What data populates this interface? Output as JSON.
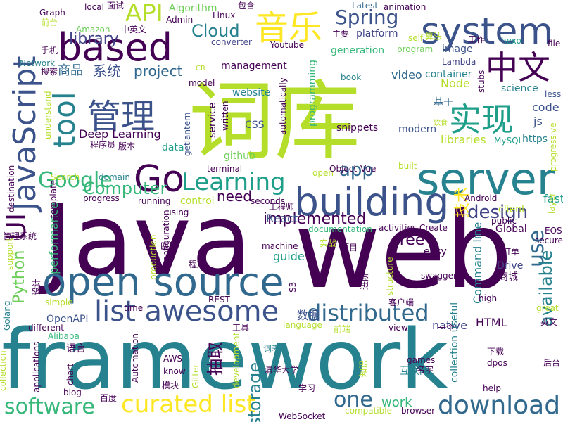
{
  "palette": {
    "dark_purple": "#440154",
    "indigo": "#3b528b",
    "slate_blue": "#414487",
    "teal_blue": "#31688e",
    "teal": "#26828e",
    "sea_green": "#1f9e89",
    "green": "#35b779",
    "light_green": "#6ece58",
    "lime": "#b5de2b",
    "yellow": "#fde725"
  },
  "words": [
    {
      "text": "Java",
      "color": "#440154"
    },
    {
      "text": "web",
      "color": "#440154"
    },
    {
      "text": "framework",
      "color": "#26828e"
    },
    {
      "text": "词库",
      "color": "#b5de2b"
    },
    {
      "text": "open source",
      "color": "#31688e"
    },
    {
      "text": "building",
      "color": "#3b528b"
    },
    {
      "text": "server",
      "color": "#26828e"
    },
    {
      "text": "JavaScript",
      "color": "#3b528b"
    },
    {
      "text": "based",
      "color": "#440154"
    },
    {
      "text": "system",
      "color": "#3b528b"
    },
    {
      "text": "Go",
      "color": "#440154"
    },
    {
      "text": "list awesome",
      "color": "#3b528b"
    },
    {
      "text": "curated list",
      "color": "#fde725"
    },
    {
      "text": "download",
      "color": "#31688e"
    },
    {
      "text": "管理",
      "color": "#3b528b"
    },
    {
      "text": "实现",
      "color": "#1f9e89"
    },
    {
      "text": "中文",
      "color": "#440154"
    },
    {
      "text": "音乐",
      "color": "#fde725"
    },
    {
      "text": "Learning",
      "color": "#1f9e89"
    },
    {
      "text": "distributed",
      "color": "#31688e"
    },
    {
      "text": "software",
      "color": "#35b779"
    },
    {
      "text": "tool",
      "color": "#26828e"
    },
    {
      "text": "API",
      "color": "#b5de2b"
    },
    {
      "text": "Spring",
      "color": "#3b528b"
    },
    {
      "text": "Cloud",
      "color": "#26828e"
    },
    {
      "text": "Google",
      "color": "#35b779"
    },
    {
      "text": "Computer",
      "color": "#35b779"
    },
    {
      "text": "library",
      "color": "#414487"
    },
    {
      "text": "project",
      "color": "#31688e"
    },
    {
      "text": "app",
      "color": "#31688e"
    },
    {
      "text": "design",
      "color": "#414487"
    },
    {
      "text": "use",
      "color": "#31688e"
    },
    {
      "text": "available",
      "color": "#26828e"
    },
    {
      "text": "implemented",
      "color": "#440154"
    },
    {
      "text": "one",
      "color": "#31688e"
    },
    {
      "text": "storage",
      "color": "#26828e"
    },
    {
      "text": "UI",
      "color": "#440154"
    },
    {
      "text": "Python",
      "color": "#6ece58"
    },
    {
      "text": "free",
      "color": "#440154"
    },
    {
      "text": "need",
      "color": "#440154"
    },
    {
      "text": "抽取",
      "color": "#440154"
    },
    {
      "text": "work",
      "color": "#35b779"
    },
    {
      "text": "系统",
      "color": "#3b528b"
    },
    {
      "text": "商品",
      "color": "#31688e"
    },
    {
      "text": "Algorithm",
      "color": "#6ece58"
    },
    {
      "text": "Deep Learning",
      "color": "#440154"
    },
    {
      "text": "Command line",
      "color": "#26828e"
    },
    {
      "text": "performance",
      "color": "#35b779"
    },
    {
      "text": "libraries",
      "color": "#b5de2b"
    },
    {
      "text": "github",
      "color": "#6ece58"
    },
    {
      "text": "data",
      "color": "#1f9e89"
    },
    {
      "text": "CSS",
      "color": "#3b528b"
    },
    {
      "text": "React",
      "color": "#3b528b"
    },
    {
      "text": "guide",
      "color": "#1f9e89"
    },
    {
      "text": "native",
      "color": "#414487"
    },
    {
      "text": "collection useful",
      "color": "#26828e"
    },
    {
      "text": "Drive",
      "color": "#414487"
    },
    {
      "text": "container",
      "color": "#26828e"
    },
    {
      "text": "Node",
      "color": "#b5de2b"
    },
    {
      "text": "website",
      "color": "#26828e"
    },
    {
      "text": "video",
      "color": "#31688e"
    },
    {
      "text": "code",
      "color": "#3b528b"
    },
    {
      "text": "js",
      "color": "#3b528b"
    },
    {
      "text": "https",
      "color": "#26828e"
    },
    {
      "text": "fast",
      "color": "#1f9e89"
    },
    {
      "text": "基于",
      "color": "#31688e"
    },
    {
      "text": "技术",
      "color": "#fde725"
    },
    {
      "text": "数据",
      "color": "#3b528b"
    },
    {
      "text": "工程师",
      "color": "#440154"
    },
    {
      "text": "互联网",
      "color": "#26828e"
    },
    {
      "text": "HTML",
      "color": "#440154"
    },
    {
      "text": "OpenAPI",
      "color": "#3b528b"
    },
    {
      "text": "程序员",
      "color": "#440154"
    },
    {
      "text": "generation",
      "color": "#35b779"
    },
    {
      "text": "platform",
      "color": "#414487"
    },
    {
      "text": "management",
      "color": "#440154"
    },
    {
      "text": "programming",
      "color": "#35b779"
    },
    {
      "text": "snippets",
      "color": "#440154"
    },
    {
      "text": "modern",
      "color": "#3b528b"
    },
    {
      "text": "book",
      "color": "#26828e"
    },
    {
      "text": "science",
      "color": "#26828e"
    },
    {
      "text": "Youtube",
      "color": "#440154"
    },
    {
      "text": "converter",
      "color": "#414487"
    },
    {
      "text": "program",
      "color": "#6ece58"
    },
    {
      "text": "image",
      "color": "#3b528b"
    },
    {
      "text": "Lambda",
      "color": "#414487"
    },
    {
      "text": "Latest",
      "color": "#31688e"
    },
    {
      "text": "animation",
      "color": "#440154"
    },
    {
      "text": "Graph",
      "color": "#440154"
    },
    {
      "text": "local",
      "color": "#440154"
    },
    {
      "text": "面试",
      "color": "#440154"
    },
    {
      "text": "Linux",
      "color": "#440154"
    },
    {
      "text": "包含",
      "color": "#440154"
    },
    {
      "text": "Admin",
      "color": "#440154"
    },
    {
      "text": "中英文",
      "color": "#440154"
    },
    {
      "text": "Amazon",
      "color": "#6ece58"
    },
    {
      "text": "前台",
      "color": "#b5de2b"
    },
    {
      "text": "手机",
      "color": "#440154"
    },
    {
      "text": "Network",
      "color": "#26828e"
    },
    {
      "text": "搜索",
      "color": "#440154"
    },
    {
      "text": "model",
      "color": "#440154"
    },
    {
      "text": "主要",
      "color": "#440154"
    },
    {
      "text": "self",
      "color": "#b5de2b"
    },
    {
      "text": "算法",
      "color": "#b5de2b"
    },
    {
      "text": "工作",
      "color": "#440154"
    },
    {
      "text": "hexo",
      "color": "#1f9e89"
    },
    {
      "text": "file",
      "color": "#440154"
    },
    {
      "text": "less",
      "color": "#3b528b"
    },
    {
      "text": "stubs",
      "color": "#440154"
    },
    {
      "text": "written",
      "color": "#440154"
    },
    {
      "text": "service",
      "color": "#440154"
    },
    {
      "text": "automatically",
      "color": "#440154"
    },
    {
      "text": "getlantern",
      "color": "#3b528b"
    },
    {
      "text": "understand",
      "color": "#b5de2b"
    },
    {
      "text": "版本",
      "color": "#440154"
    },
    {
      "text": "MySQL",
      "color": "#1f9e89"
    },
    {
      "text": "progressive",
      "color": "#b5de2b"
    },
    {
      "text": "Search",
      "color": "#b5de2b"
    },
    {
      "text": "domain",
      "color": "#26828e"
    },
    {
      "text": "terminal",
      "color": "#440154"
    },
    {
      "text": "seconds",
      "color": "#440154"
    },
    {
      "text": "open",
      "color": "#b5de2b"
    },
    {
      "text": "Object",
      "color": "#440154"
    },
    {
      "text": "Vue",
      "color": "#440154"
    },
    {
      "text": "built",
      "color": "#b5de2b"
    },
    {
      "text": "destination",
      "color": "#440154"
    },
    {
      "text": "template",
      "color": "#440154"
    },
    {
      "text": "progress",
      "color": "#440154"
    },
    {
      "text": "running",
      "color": "#440154"
    },
    {
      "text": "control",
      "color": "#b5de2b"
    },
    {
      "text": "Android",
      "color": "#440154"
    },
    {
      "text": "layer",
      "color": "#b5de2b"
    },
    {
      "text": "client",
      "color": "#b5de2b"
    },
    {
      "text": "public",
      "color": "#440154"
    },
    {
      "text": "Global",
      "color": "#440154"
    },
    {
      "text": "EOS",
      "color": "#440154"
    },
    {
      "text": "secure",
      "color": "#440154"
    },
    {
      "text": "using",
      "color": "#440154"
    },
    {
      "text": "configuration",
      "color": "#440154"
    },
    {
      "text": "production",
      "color": "#b5de2b"
    },
    {
      "text": "documentation",
      "color": "#35b779"
    },
    {
      "text": "activities",
      "color": "#440154"
    },
    {
      "text": "Create",
      "color": "#440154"
    },
    {
      "text": "管理系统",
      "color": "#440154"
    },
    {
      "text": "support",
      "color": "#b5de2b"
    },
    {
      "text": "匹配",
      "color": "#440154"
    },
    {
      "text": "程序",
      "color": "#440154"
    },
    {
      "text": "实战",
      "color": "#b5de2b"
    },
    {
      "text": "machine",
      "color": "#440154"
    },
    {
      "text": "项目",
      "color": "#440154"
    },
    {
      "text": "easy",
      "color": "#440154"
    },
    {
      "text": "订单",
      "color": "#440154"
    },
    {
      "text": "商城",
      "color": "#440154"
    },
    {
      "text": "设计",
      "color": "#440154"
    },
    {
      "text": "simple",
      "color": "#b5de2b"
    },
    {
      "text": "REST",
      "color": "#440154"
    },
    {
      "text": "进阶",
      "color": "#440154"
    },
    {
      "text": "structure",
      "color": "#b5de2b"
    },
    {
      "text": "swagger",
      "color": "#440154"
    },
    {
      "text": "客户端",
      "color": "#440154"
    },
    {
      "text": "high",
      "color": "#440154"
    },
    {
      "text": "great",
      "color": "#b5de2b"
    },
    {
      "text": "Golang",
      "color": "#26828e"
    },
    {
      "text": "Alibaba",
      "color": "#35b779"
    },
    {
      "text": "different",
      "color": "#440154"
    },
    {
      "text": "time",
      "color": "#440154"
    },
    {
      "text": "工具",
      "color": "#440154"
    },
    {
      "text": "language",
      "color": "#b5de2b"
    },
    {
      "text": "前端",
      "color": "#b5de2b"
    },
    {
      "text": "view",
      "color": "#440154"
    },
    {
      "text": "一个",
      "color": "#440154"
    },
    {
      "text": "英文",
      "color": "#440154"
    },
    {
      "text": "AWS",
      "color": "#440154"
    },
    {
      "text": "语言",
      "color": "#440154"
    },
    {
      "text": "词表",
      "color": "#26828e"
    },
    {
      "text": "Automation",
      "color": "#440154"
    },
    {
      "text": "chart",
      "color": "#440154"
    },
    {
      "text": "know",
      "color": "#440154"
    },
    {
      "text": "模块",
      "color": "#440154"
    },
    {
      "text": "Gitter",
      "color": "#b5de2b"
    },
    {
      "text": "清华大学",
      "color": "#440154"
    },
    {
      "text": "development",
      "color": "#b5de2b"
    },
    {
      "text": "知识",
      "color": "#b5de2b"
    },
    {
      "text": "games",
      "color": "#440154"
    },
    {
      "text": "名字",
      "color": "#440154"
    },
    {
      "text": "下载",
      "color": "#440154"
    },
    {
      "text": "dpos",
      "color": "#440154"
    },
    {
      "text": "help",
      "color": "#440154"
    },
    {
      "text": "后台",
      "color": "#440154"
    },
    {
      "text": "collection",
      "color": "#b5de2b"
    },
    {
      "text": "applications",
      "color": "#440154"
    },
    {
      "text": "blog",
      "color": "#440154"
    },
    {
      "text": "百度",
      "color": "#440154"
    },
    {
      "text": "学习",
      "color": "#440154"
    },
    {
      "text": "compatible",
      "color": "#b5de2b"
    },
    {
      "text": "browser",
      "color": "#440154"
    },
    {
      "text": "WebSocket",
      "color": "#440154"
    },
    {
      "text": "S3",
      "color": "#440154"
    },
    {
      "text": "CR",
      "color": "#b5de2b"
    },
    {
      "text": "饮食",
      "color": "#b5de2b"
    }
  ]
}
